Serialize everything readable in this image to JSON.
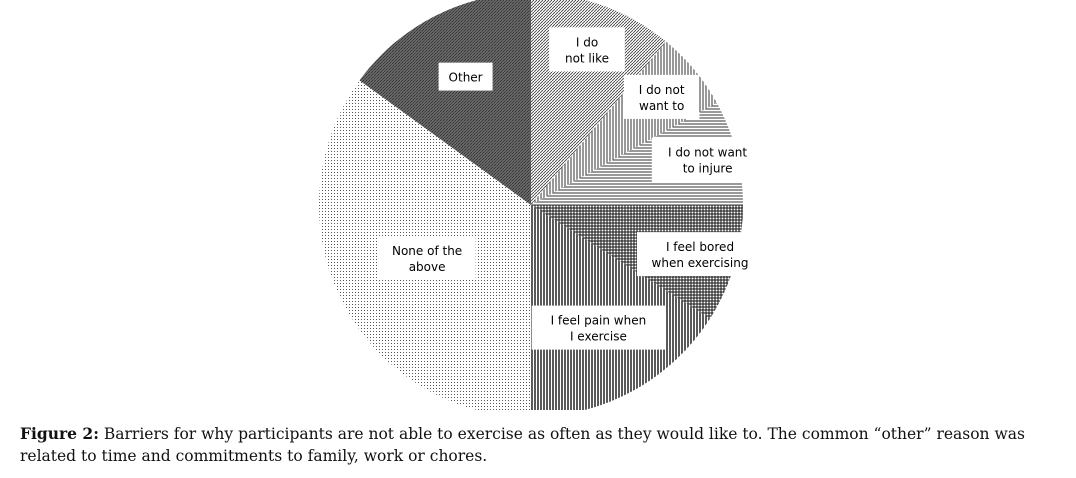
{
  "chart_data": {
    "type": "pie",
    "title": "",
    "slices": [
      {
        "label": "I do not like",
        "value": 11,
        "pattern": "diag-fine",
        "color": "#666666"
      },
      {
        "label": "I do not want to",
        "value": 6,
        "pattern": "vertical-fine",
        "color": "#555555"
      },
      {
        "label": "I do not want to injure",
        "value": 8,
        "pattern": "horizontal",
        "color": "#444444"
      },
      {
        "label": "I feel bored when exercising",
        "value": 9,
        "pattern": "grid",
        "color": "#222222"
      },
      {
        "label": "I feel pain when I exercise",
        "value": 16,
        "pattern": "vertical",
        "color": "#111111"
      },
      {
        "label": "None of the above",
        "value": 35,
        "pattern": "dots",
        "color": "#777777"
      },
      {
        "label": "Other",
        "value": 15,
        "pattern": "dense-diag",
        "color": "#333333"
      }
    ],
    "start_angle_deg": 0,
    "direction": "clockwise",
    "legend": "none",
    "data_labels": "boxed-inside"
  },
  "caption": {
    "label": "Figure 2:",
    "text": " Barriers for why participants are not able to exercise as often as they would like to. The common “other” reason was related to time and commitments to family, work or chores."
  }
}
